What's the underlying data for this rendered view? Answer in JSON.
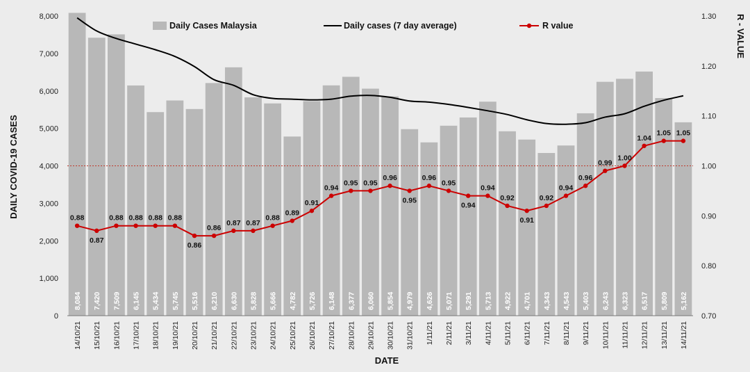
{
  "chart_data": {
    "type": "bar+line",
    "categories": [
      "14/10/21",
      "15/10/21",
      "16/10/21",
      "17/10/21",
      "18/10/21",
      "19/10/21",
      "20/10/21",
      "21/10/21",
      "22/10/21",
      "23/10/21",
      "24/10/21",
      "25/10/21",
      "26/10/21",
      "27/10/21",
      "28/10/21",
      "29/10/21",
      "30/10/21",
      "31/10/21",
      "1/11/21",
      "2/11/21",
      "3/11/21",
      "4/11/21",
      "5/11/21",
      "6/11/21",
      "7/11/21",
      "8/11/21",
      "9/11/21",
      "10/11/21",
      "11/11/21",
      "12/11/21",
      "13/11/21",
      "14/11/21"
    ],
    "xlabel": "DATE",
    "ylabel": "DAILY COVID-19 CASES",
    "y2label": "R - VALUE",
    "ylim": [
      0,
      8000
    ],
    "y2lim": [
      0.7,
      1.3
    ],
    "yticks": [
      "0",
      "1,000",
      "2,000",
      "3,000",
      "4,000",
      "5,000",
      "6,000",
      "7,000",
      "8,000"
    ],
    "y2ticks": [
      "0.70",
      "0.80",
      "0.90",
      "1.00",
      "1.10",
      "1.20",
      "1.30"
    ],
    "reference_line_r": 1.0,
    "legend_position": "top",
    "series": [
      {
        "name": "Daily Cases Malaysia",
        "kind": "bar",
        "axis": "left",
        "color": "#b8b8b8",
        "values": [
          8084,
          7420,
          7509,
          6145,
          5434,
          5745,
          5516,
          6210,
          6630,
          5828,
          5666,
          4782,
          5726,
          6148,
          6377,
          6060,
          5854,
          4979,
          4626,
          5071,
          5291,
          5713,
          4922,
          4701,
          4343,
          4543,
          5403,
          6243,
          6323,
          6517,
          5809,
          5162
        ],
        "labels": [
          "8,084",
          "7,420",
          "7,509",
          "6,145",
          "5,434",
          "5,745",
          "5,516",
          "6,210",
          "6,630",
          "5,828",
          "5,666",
          "4,782",
          "5,726",
          "6,148",
          "6,377",
          "6,060",
          "5,854",
          "4,979",
          "4,626",
          "5,071",
          "5,291",
          "5,713",
          "4,922",
          "4,701",
          "4,343",
          "4,543",
          "5,403",
          "6,243",
          "6,323",
          "6,517",
          "5,809",
          "5,162"
        ]
      },
      {
        "name": "Daily cases (7 day average)",
        "kind": "line",
        "axis": "left",
        "color": "#000000",
        "values": [
          7950,
          7600,
          7400,
          7250,
          7100,
          6920,
          6650,
          6300,
          6150,
          5900,
          5800,
          5780,
          5760,
          5780,
          5860,
          5880,
          5830,
          5730,
          5700,
          5640,
          5560,
          5470,
          5370,
          5230,
          5130,
          5110,
          5150,
          5300,
          5390,
          5590,
          5750,
          5870
        ]
      },
      {
        "name": "R value",
        "kind": "line-marker",
        "axis": "right",
        "color": "#cc0000",
        "values": [
          0.88,
          0.87,
          0.88,
          0.88,
          0.88,
          0.88,
          0.86,
          0.86,
          0.87,
          0.87,
          0.88,
          0.89,
          0.91,
          0.94,
          0.95,
          0.95,
          0.96,
          0.95,
          0.96,
          0.95,
          0.94,
          0.94,
          0.92,
          0.91,
          0.92,
          0.94,
          0.96,
          0.99,
          1.0,
          1.04,
          1.05,
          1.05
        ],
        "labels": [
          "0.88",
          "0.87",
          "0.88",
          "0.88",
          "0.88",
          "0.88",
          "0.86",
          "0.86",
          "0.87",
          "0.87",
          "0.88",
          "0.89",
          "0.91",
          "0.94",
          "0.95",
          "0.95",
          "0.96",
          "0.95",
          "0.96",
          "0.95",
          "0.94",
          "0.94",
          "0.92",
          "0.91",
          "0.92",
          "0.94",
          "0.96",
          "0.99",
          "1.00",
          "1.04",
          "1.05",
          "1.05"
        ]
      }
    ]
  },
  "colors": {
    "background": "#ececec",
    "bar": "#b8b8b8",
    "avg_line": "#000000",
    "r_line": "#cc0000",
    "reference_line": "#c0392b"
  }
}
